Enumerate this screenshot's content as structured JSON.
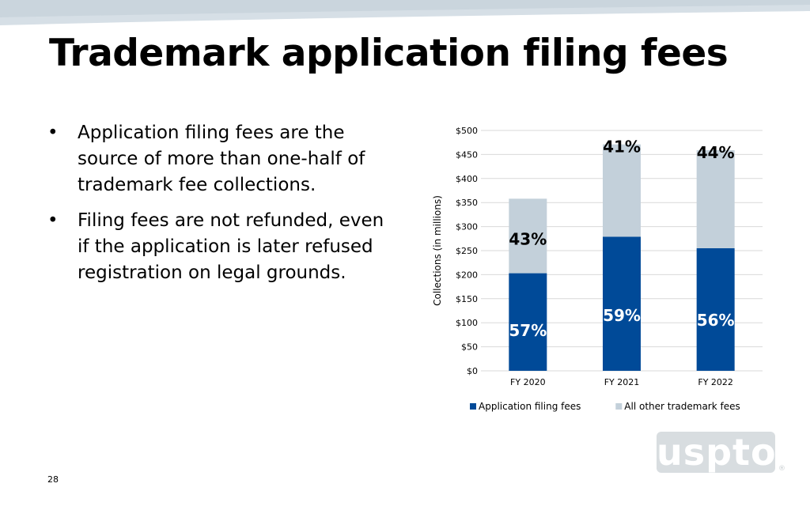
{
  "slide": {
    "title": "Trademark application filing fees",
    "page_number": "28",
    "bullets": [
      "Application filing fees are the source of more than one-half of trademark fee collections.",
      "Filing fees are not refunded, even if the application is later refused registration on legal grounds."
    ],
    "bullet_glyph": "•",
    "logo": {
      "text": "uspto",
      "mark": "®"
    }
  },
  "colors": {
    "filing": "#004a98",
    "other": "#c3d0da",
    "grid": "#d9d9d9",
    "top_band": "#d6dfe6"
  },
  "chart_data": {
    "type": "bar",
    "stacked": true,
    "categories": [
      "FY 2020",
      "FY 2021",
      "FY 2022"
    ],
    "series": [
      {
        "name": "Application filing fees",
        "values": [
          203,
          279,
          255
        ],
        "labels": [
          "57%",
          "59%",
          "56%"
        ]
      },
      {
        "name": "All other trademark fees",
        "values": [
          155,
          192,
          204
        ],
        "labels": [
          "43%",
          "41%",
          "44%"
        ]
      }
    ],
    "ylabel": "Collections (in millions)",
    "ylim": [
      0,
      500
    ],
    "yticks": [
      0,
      50,
      100,
      150,
      200,
      250,
      300,
      350,
      400,
      450,
      500
    ],
    "ytick_labels": [
      "$0",
      "$50",
      "$100",
      "$150",
      "$200",
      "$250",
      "$300",
      "$350",
      "$400",
      "$450",
      "$500"
    ],
    "grid": true,
    "legend_position": "bottom"
  }
}
